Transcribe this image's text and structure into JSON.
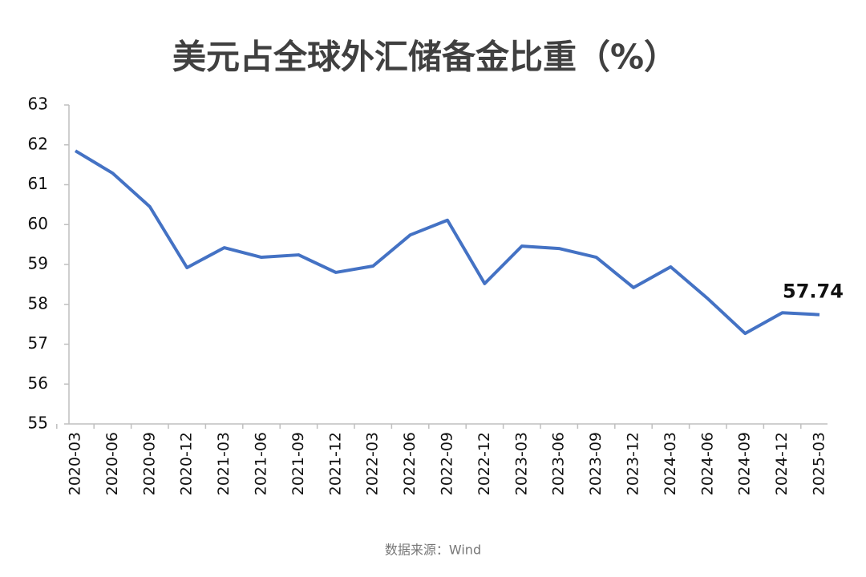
{
  "chart_data": {
    "type": "line",
    "title": "美元占全球外汇储备金比重（%）",
    "categories": [
      "2020-03",
      "2020-06",
      "2020-09",
      "2020-12",
      "2021-03",
      "2021-06",
      "2021-09",
      "2021-12",
      "2022-03",
      "2022-06",
      "2022-09",
      "2022-12",
      "2023-03",
      "2023-06",
      "2023-09",
      "2023-12",
      "2024-03",
      "2024-06",
      "2024-09",
      "2024-12",
      "2025-03"
    ],
    "series": [
      {
        "values": [
          61.85,
          61.29,
          60.45,
          58.92,
          59.42,
          59.18,
          59.24,
          58.8,
          58.96,
          59.74,
          60.11,
          58.52,
          59.46,
          59.4,
          59.18,
          58.42,
          58.94,
          58.14,
          57.27,
          57.79,
          57.74
        ],
        "value_labels": [
          null,
          null,
          null,
          null,
          null,
          null,
          null,
          null,
          null,
          null,
          null,
          null,
          null,
          null,
          null,
          null,
          null,
          null,
          null,
          null,
          "57.74"
        ],
        "color": "#4472c4"
      }
    ],
    "ylim": [
      55,
      63
    ],
    "yticks": [
      55,
      56,
      57,
      58,
      59,
      60,
      61,
      62,
      63
    ],
    "grid": false,
    "source": "数据来源：Wind"
  }
}
